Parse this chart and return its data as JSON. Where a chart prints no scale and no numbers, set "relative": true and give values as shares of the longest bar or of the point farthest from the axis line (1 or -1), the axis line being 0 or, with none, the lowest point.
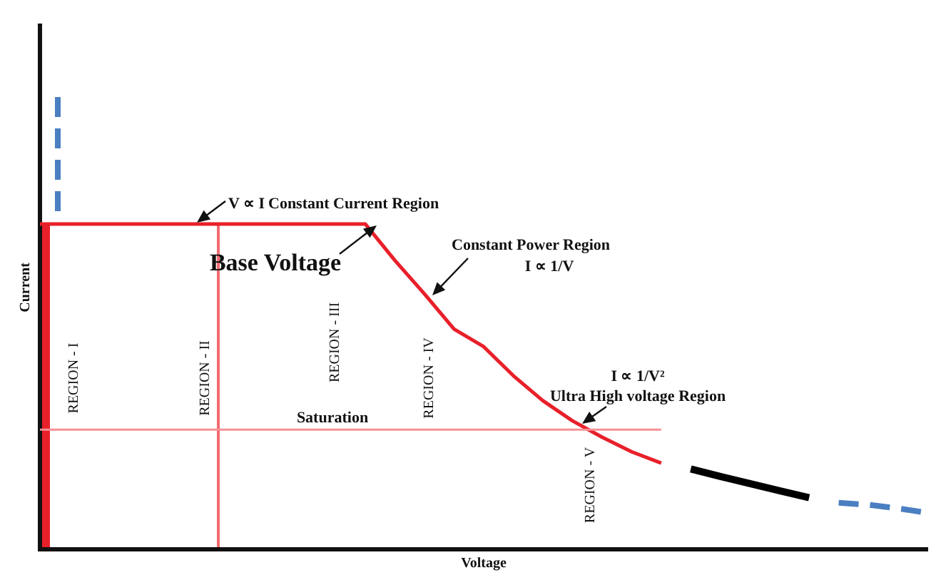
{
  "chart_data": {
    "type": "line",
    "xlabel": "Voltage",
    "ylabel": "Current",
    "relative": true,
    "categories": [
      null,
      null,
      null,
      null,
      null,
      null,
      null,
      null,
      null,
      null,
      null,
      null,
      null,
      null,
      null,
      null,
      null,
      null,
      null,
      null,
      null,
      null,
      null,
      null,
      null,
      null,
      null,
      null,
      null,
      null,
      null
    ],
    "series": [
      {
        "color": "#e8202a",
        "line_style": "solid",
        "values": [
          1,
          1,
          1,
          1,
          1,
          1,
          1,
          1,
          1,
          1,
          1,
          1,
          0.888,
          0.785,
          0.677,
          0.623,
          0.534,
          0.457,
          0.395,
          0.345,
          0.3,
          0.265,
          null,
          null,
          null,
          null,
          null,
          null,
          null,
          null,
          null
        ]
      },
      {
        "color": "#000000",
        "line_style": "solid",
        "values": [
          null,
          null,
          null,
          null,
          null,
          null,
          null,
          null,
          null,
          null,
          null,
          null,
          null,
          null,
          null,
          null,
          null,
          null,
          null,
          null,
          null,
          null,
          0.247,
          0.224,
          0.202,
          0.18,
          0.159,
          null,
          null,
          null,
          null
        ]
      },
      {
        "color": "#4a7fc1",
        "line_style": "dashed",
        "values": [
          null,
          null,
          null,
          null,
          null,
          null,
          null,
          null,
          null,
          null,
          null,
          null,
          null,
          null,
          null,
          null,
          null,
          null,
          null,
          null,
          null,
          null,
          null,
          null,
          null,
          null,
          null,
          0.143,
          0.137,
          0.126,
          0.112
        ]
      }
    ],
    "ref_lines": [
      {
        "axis": "y",
        "value": 0.368,
        "label": "Saturation",
        "color": "#f79095"
      }
    ],
    "annotations": [
      "V ∝ I",
      "Constant Current Region",
      "Base Voltage",
      "Constant Power Region",
      "I ∝ 1/V",
      "I ∝ 1/V²",
      "Ultra High voltage Region",
      "REGION - I",
      "REGION - II",
      "REGION - III",
      "REGION - IV",
      "REGION - V"
    ]
  }
}
